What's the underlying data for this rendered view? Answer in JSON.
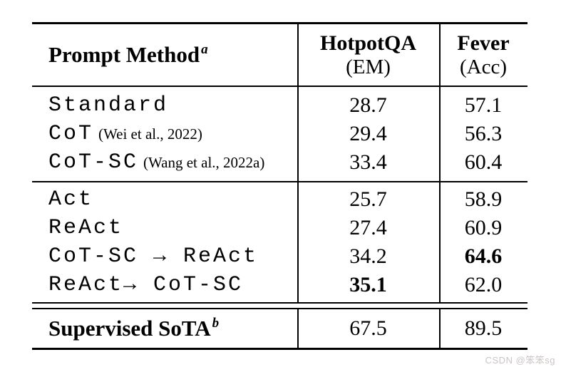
{
  "table": {
    "header": {
      "method": {
        "label": "Prompt Method",
        "sup": "a"
      },
      "columns": [
        {
          "line1": "HotpotQA",
          "line2": "(EM)"
        },
        {
          "line1": "Fever",
          "line2": "(Acc)"
        }
      ]
    },
    "group1": {
      "rows": [
        {
          "name": "Standard",
          "cite": "",
          "hotpotqa": "28.7",
          "fever": "57.1"
        },
        {
          "name": "CoT",
          "cite": "(Wei et al., 2022)",
          "hotpotqa": "29.4",
          "fever": "56.3"
        },
        {
          "name": "CoT-SC",
          "cite": "(Wang et al., 2022a)",
          "hotpotqa": "33.4",
          "fever": "60.4"
        }
      ]
    },
    "group2": {
      "rows": [
        {
          "name": "Act",
          "cite": "",
          "hotpotqa": "25.7",
          "fever": "58.9"
        },
        {
          "name": "ReAct",
          "cite": "",
          "hotpotqa": "27.4",
          "fever": "60.9"
        },
        {
          "name": "CoT-SC → ReAct",
          "cite": "",
          "hotpotqa": "34.2",
          "fever": "64.6"
        },
        {
          "name": "ReAct→ CoT-SC",
          "cite": "",
          "hotpotqa": "35.1",
          "fever": "62.0"
        }
      ]
    },
    "footer": {
      "label": "Supervised SoTA",
      "sup": "b",
      "hotpotqa": "67.5",
      "fever": "89.5"
    }
  },
  "watermark": {
    "text": "CSDN @笨笨sg"
  },
  "colors": {
    "text": "#000000",
    "background": "#ffffff",
    "watermark": "#ccc5c5"
  }
}
